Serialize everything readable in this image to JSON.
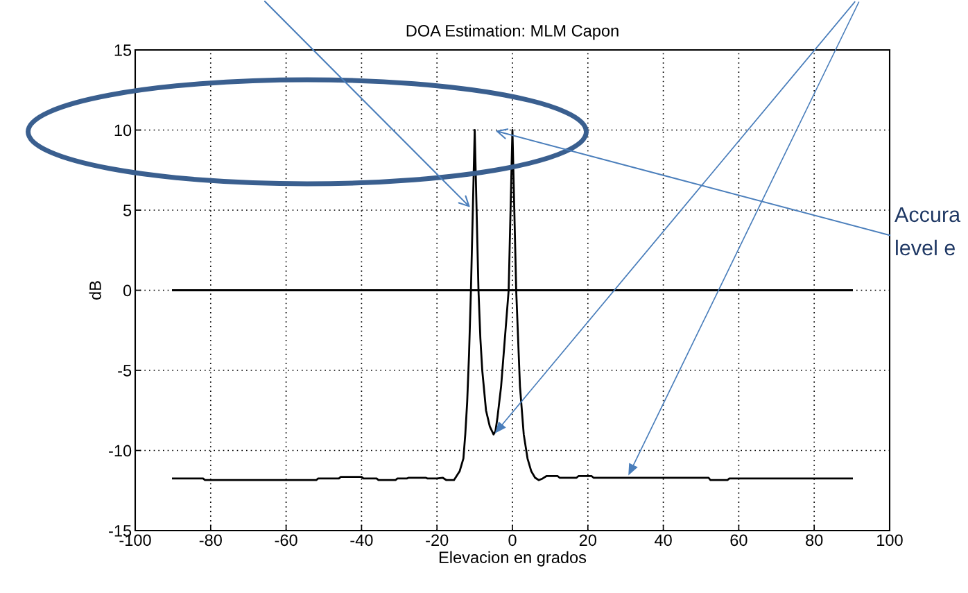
{
  "chart_data": {
    "type": "line",
    "title": "DOA Estimation: MLM Capon",
    "xlabel": "Elevacion en grados",
    "ylabel": "dB",
    "xlim": [
      -100,
      100
    ],
    "xticks": [
      -100,
      -80,
      -60,
      -40,
      -20,
      0,
      20,
      40,
      60,
      80,
      100
    ],
    "ylim": [
      -15,
      15
    ],
    "yticks": [
      -15,
      -10,
      -5,
      0,
      5,
      10,
      15
    ],
    "grid": true,
    "legend": false,
    "marker": "none",
    "line_style": "solid",
    "annotations": [
      "Accura",
      "level e"
    ],
    "series": [
      {
        "color": "#000000",
        "x": [
          -90,
          -82,
          -81.5,
          -52,
          -51.5,
          -46,
          -45.5,
          -40,
          -39.5,
          -36,
          -35.5,
          -31,
          -30.5,
          -28,
          -27.5,
          -23,
          -22.5,
          -20,
          -18.5,
          -17.5,
          -15.5,
          -14,
          -13,
          -12.5,
          -12,
          -11.5,
          -11,
          -10.5,
          -10,
          -9.5,
          -9,
          -8.5,
          -8,
          -7,
          -6,
          -5,
          -4.5,
          -4,
          -3,
          -2,
          -1,
          -0.5,
          0,
          0.5,
          1,
          1.5,
          2,
          3,
          4,
          5,
          6,
          7,
          8,
          9,
          12,
          12.5,
          17,
          17.5,
          21,
          21.5,
          52,
          52.5,
          57,
          57.5,
          90
        ],
        "values": [
          -11.75,
          -11.75,
          -11.85,
          -11.85,
          -11.75,
          -11.75,
          -11.65,
          -11.65,
          -11.75,
          -11.75,
          -11.85,
          -11.85,
          -11.75,
          -11.75,
          -11.7,
          -11.7,
          -11.75,
          -11.75,
          -11.7,
          -11.85,
          -11.85,
          -11.3,
          -10.5,
          -9,
          -7,
          -4,
          0,
          5,
          10,
          5,
          0,
          -3,
          -5,
          -7.5,
          -8.5,
          -9,
          -8.8,
          -8,
          -6,
          -3,
          0,
          5,
          10,
          5,
          0,
          -3,
          -6,
          -9,
          -10.5,
          -11.3,
          -11.7,
          -11.85,
          -11.75,
          -11.6,
          -11.6,
          -11.7,
          -11.7,
          -11.6,
          -11.6,
          -11.7,
          -11.7,
          -11.85,
          -11.85,
          -11.75,
          -11.75
        ]
      },
      {
        "color": "#000000",
        "x": [
          -90,
          90
        ],
        "values": [
          0,
          0
        ]
      }
    ]
  }
}
